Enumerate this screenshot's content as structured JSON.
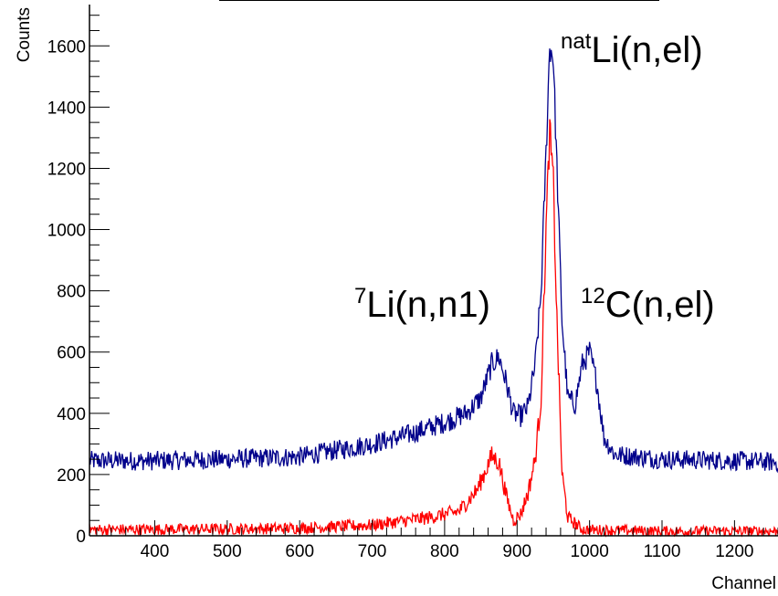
{
  "chart_data": {
    "type": "line",
    "title": "",
    "xlabel": "Channel",
    "ylabel": "Counts",
    "xlim": [
      310,
      1260
    ],
    "ylim": [
      0,
      1720
    ],
    "xticks": [
      400,
      500,
      600,
      700,
      800,
      900,
      1000,
      1100,
      1200
    ],
    "yticks": [
      0,
      200,
      400,
      600,
      800,
      1000,
      1200,
      1400,
      1600
    ],
    "series": [
      {
        "color": "#00008b",
        "points": [
          [
            310,
            245
          ],
          [
            400,
            245
          ],
          [
            500,
            250
          ],
          [
            600,
            258
          ],
          [
            700,
            300
          ],
          [
            750,
            330
          ],
          [
            800,
            370
          ],
          [
            830,
            400
          ],
          [
            850,
            450
          ],
          [
            865,
            560
          ],
          [
            875,
            585
          ],
          [
            885,
            500
          ],
          [
            895,
            400
          ],
          [
            905,
            390
          ],
          [
            915,
            420
          ],
          [
            925,
            560
          ],
          [
            933,
            790
          ],
          [
            940,
            1250
          ],
          [
            945,
            1600
          ],
          [
            950,
            1560
          ],
          [
            955,
            1200
          ],
          [
            962,
            700
          ],
          [
            970,
            450
          ],
          [
            980,
            430
          ],
          [
            990,
            560
          ],
          [
            1000,
            600
          ],
          [
            1010,
            500
          ],
          [
            1020,
            320
          ],
          [
            1035,
            265
          ],
          [
            1100,
            250
          ],
          [
            1200,
            245
          ],
          [
            1260,
            240
          ]
        ]
      },
      {
        "color": "#ff0000",
        "points": [
          [
            310,
            20
          ],
          [
            500,
            22
          ],
          [
            600,
            25
          ],
          [
            700,
            35
          ],
          [
            780,
            60
          ],
          [
            820,
            80
          ],
          [
            845,
            150
          ],
          [
            865,
            260
          ],
          [
            875,
            240
          ],
          [
            885,
            130
          ],
          [
            895,
            50
          ],
          [
            905,
            70
          ],
          [
            915,
            140
          ],
          [
            925,
            250
          ],
          [
            933,
            450
          ],
          [
            940,
            1000
          ],
          [
            945,
            1320
          ],
          [
            950,
            1150
          ],
          [
            955,
            700
          ],
          [
            962,
            200
          ],
          [
            970,
            60
          ],
          [
            990,
            20
          ],
          [
            1100,
            15
          ],
          [
            1260,
            15
          ]
        ]
      }
    ],
    "annotations": [
      {
        "prefix": "nat",
        "text": "Li(n,el)"
      },
      {
        "prefix": "7",
        "text": "Li(n,n1)"
      },
      {
        "prefix": "12",
        "text": "C(n,el)"
      }
    ]
  }
}
